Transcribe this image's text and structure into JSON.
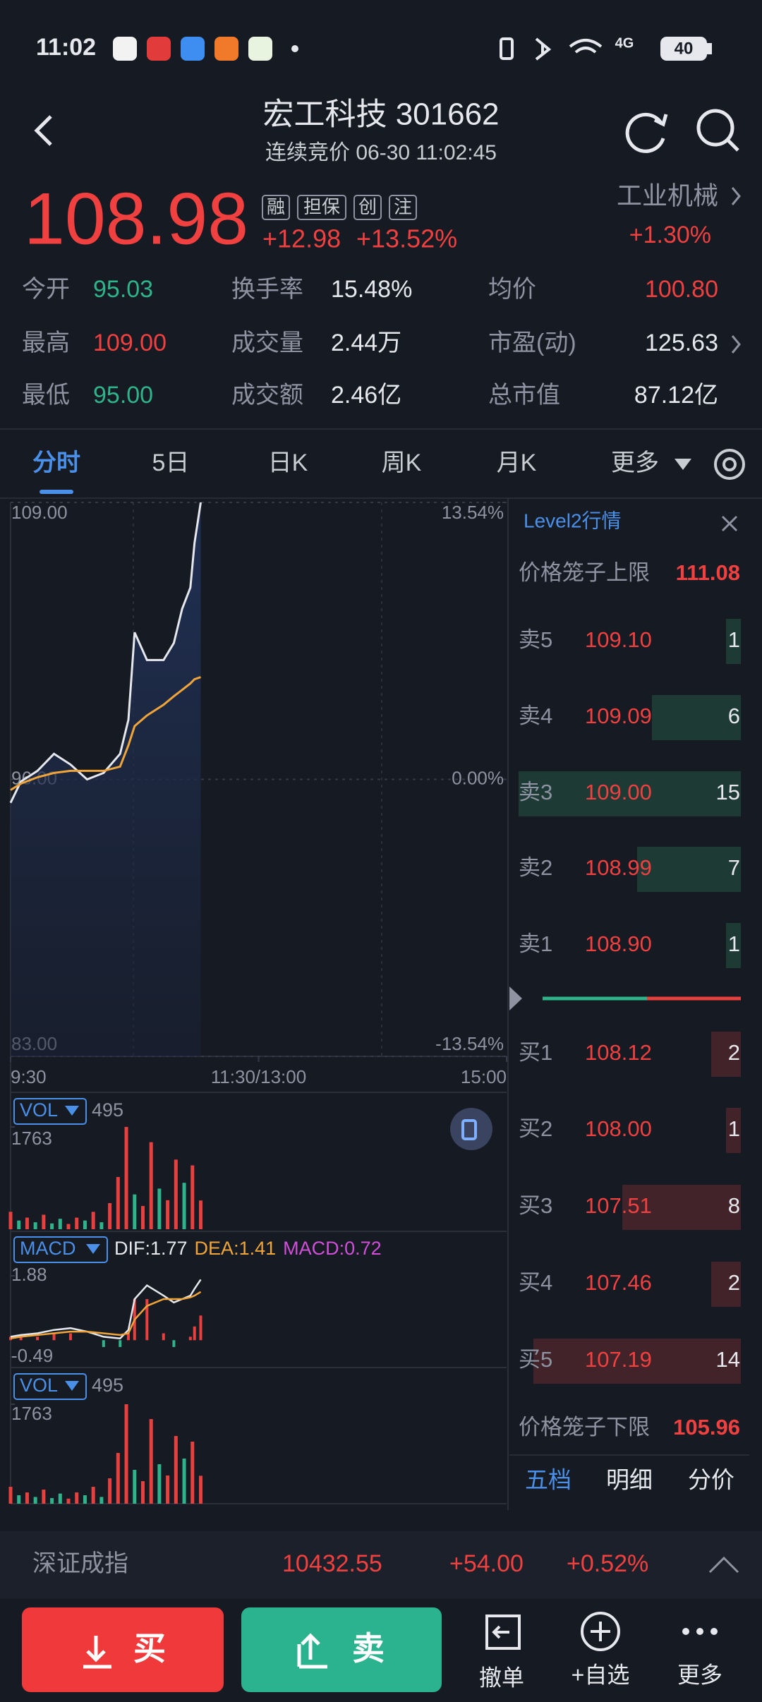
{
  "status_bar": {
    "time": "11:02",
    "network": "4G",
    "battery": "40"
  },
  "header": {
    "title": "宏工科技 301662",
    "subtitle": "连续竞价 06-30 11:02:45"
  },
  "quote": {
    "price": "108.98",
    "change": "+12.98",
    "change_pct": "+13.52%",
    "tags": [
      "融",
      "担保",
      "创",
      "注"
    ],
    "sector": "工业机械",
    "sector_change": "+1.30%"
  },
  "stats": [
    {
      "label": "今开",
      "value": "95.03",
      "color": "#2fb38a"
    },
    {
      "label": "换手率",
      "value": "15.48%",
      "color": "#e6e8ee"
    },
    {
      "label": "均价",
      "value": "100.80",
      "color": "#f0403f"
    },
    {
      "label": "最高",
      "value": "109.00",
      "color": "#f0403f"
    },
    {
      "label": "成交量",
      "value": "2.44万",
      "color": "#e6e8ee"
    },
    {
      "label": "市盈(动)",
      "value": "125.63",
      "color": "#e6e8ee"
    },
    {
      "label": "最低",
      "value": "95.00",
      "color": "#2fb38a"
    },
    {
      "label": "成交额",
      "value": "2.46亿",
      "color": "#e6e8ee"
    },
    {
      "label": "总市值",
      "value": "87.12亿",
      "color": "#e6e8ee"
    }
  ],
  "tabs": [
    "分时",
    "5日",
    "日K",
    "周K",
    "月K",
    "更多"
  ],
  "chart_data": [
    {
      "type": "line",
      "xlim": [
        0,
        240
      ],
      "xticks": [
        {
          "value": 0,
          "label": "9:30"
        },
        {
          "value": 120,
          "label": "11:30/13:00"
        },
        {
          "value": 240,
          "label": "15:00"
        }
      ],
      "ylim": [
        83,
        109
      ],
      "yticks": [
        {
          "value": 109,
          "label": "109.00"
        },
        {
          "value": 96,
          "label": "96.00"
        },
        {
          "value": 83,
          "label": "83.00"
        }
      ],
      "y2lim": [
        -13.54,
        13.54
      ],
      "y2ticks": [
        {
          "value": 13.54,
          "label": "13.54%"
        },
        {
          "value": 0,
          "label": "0.00%"
        },
        {
          "value": -13.54,
          "label": "-13.54%"
        }
      ],
      "x": [
        0,
        5,
        13,
        21,
        29,
        37,
        45,
        53,
        57,
        60,
        66,
        74,
        79,
        83,
        87,
        89,
        92
      ],
      "series": [
        {
          "color": "#e6e8ee",
          "values": [
            94.9,
            95.9,
            96.4,
            97.2,
            96.7,
            96.0,
            96.3,
            97.2,
            98.8,
            102.9,
            101.6,
            101.6,
            102.4,
            104.0,
            105.0,
            107.1,
            109.0
          ]
        },
        {
          "color": "#f0a53a",
          "values": [
            95.5,
            95.8,
            96.1,
            96.3,
            96.4,
            96.4,
            96.4,
            96.6,
            97.6,
            98.5,
            99.0,
            99.5,
            99.9,
            100.2,
            100.5,
            100.7,
            100.8
          ]
        }
      ]
    },
    {
      "type": "bar",
      "label": "VOL",
      "last": 495,
      "xlim": [
        0,
        240
      ],
      "x": [
        0,
        4,
        8,
        12,
        16,
        20,
        24,
        28,
        32,
        36,
        40,
        44,
        48,
        52,
        56,
        60,
        64,
        68,
        72,
        76,
        80,
        84,
        88,
        92
      ],
      "values": [
        300,
        150,
        200,
        120,
        250,
        100,
        180,
        90,
        200,
        150,
        300,
        120,
        450,
        900,
        1763,
        600,
        400,
        1500,
        700,
        500,
        1200,
        800,
        1100,
        495
      ],
      "colors": [
        "#e8403f",
        "#2fb38a",
        "#e8403f",
        "#2fb38a",
        "#e8403f",
        "#2fb38a",
        "#2fb38a",
        "#e8403f",
        "#e8403f",
        "#2fb38a",
        "#e8403f",
        "#2fb38a",
        "#e8403f",
        "#e8403f",
        "#e8403f",
        "#2fb38a",
        "#e8403f",
        "#e8403f",
        "#2fb38a",
        "#e8403f",
        "#e8403f",
        "#2fb38a",
        "#e8403f",
        "#e8403f"
      ],
      "ylim": [
        0,
        1763
      ],
      "yticks": [
        1763
      ]
    },
    {
      "type": "macd",
      "label": "MACD",
      "legend": [
        "DIF:1.77",
        "DEA:1.41",
        "MACD:0.72"
      ],
      "legend_colors": [
        "#e6e8ee",
        "#f0a53a",
        "#d04fd8"
      ],
      "xlim": [
        0,
        240
      ],
      "x": [
        0,
        5,
        13,
        21,
        29,
        37,
        45,
        53,
        57,
        60,
        66,
        74,
        79,
        83,
        87,
        89,
        92
      ],
      "ylim": [
        -0.49,
        1.88
      ],
      "yticks": [
        1.88,
        -0.49
      ],
      "series": [
        {
          "color": "#e6e8ee",
          "values": [
            0.1,
            0.15,
            0.2,
            0.3,
            0.35,
            0.25,
            0.1,
            0.05,
            0.3,
            1.2,
            1.6,
            1.3,
            1.1,
            1.2,
            1.3,
            1.5,
            1.77
          ]
        },
        {
          "color": "#f0a53a",
          "values": [
            0.05,
            0.1,
            0.15,
            0.2,
            0.25,
            0.25,
            0.2,
            0.15,
            0.2,
            0.6,
            1.0,
            1.2,
            1.2,
            1.2,
            1.25,
            1.3,
            1.41
          ]
        }
      ],
      "histogram": {
        "values": [
          0.1,
          0.1,
          0.1,
          0.2,
          0.2,
          0,
          -0.2,
          -0.2,
          0.2,
          1.2,
          1.2,
          0.2,
          -0.2,
          0,
          0.1,
          0.4,
          0.72
        ],
        "up_color": "#e8403f",
        "down_color": "#2fb38a"
      }
    }
  ],
  "level2": {
    "title": "Level2行情",
    "upper_limit_label": "价格笼子上限",
    "upper_limit": "111.08",
    "asks": [
      {
        "label": "卖5",
        "price": "109.10",
        "volume": 1
      },
      {
        "label": "卖4",
        "price": "109.09",
        "volume": 6
      },
      {
        "label": "卖3",
        "price": "109.00",
        "volume": 15
      },
      {
        "label": "卖2",
        "price": "108.99",
        "volume": 7
      },
      {
        "label": "卖1",
        "price": "108.90",
        "volume": 1
      }
    ],
    "bids": [
      {
        "label": "买1",
        "price": "108.12",
        "volume": 2
      },
      {
        "label": "买2",
        "price": "108.00",
        "volume": 1
      },
      {
        "label": "买3",
        "price": "107.51",
        "volume": 8
      },
      {
        "label": "买4",
        "price": "107.46",
        "volume": 2
      },
      {
        "label": "买5",
        "price": "107.19",
        "volume": 14
      }
    ],
    "lower_limit_label": "价格笼子下限",
    "lower_limit": "105.96",
    "tabs": [
      "五档",
      "明细",
      "分价"
    ]
  },
  "index_bar": {
    "name": "深证成指",
    "value": "10432.55",
    "change": "+54.00",
    "change_pct": "+0.52%"
  },
  "bottom_bar": {
    "buy": "买",
    "sell": "卖",
    "cancel": "撤单",
    "watch": "+自选",
    "more": "更多"
  }
}
